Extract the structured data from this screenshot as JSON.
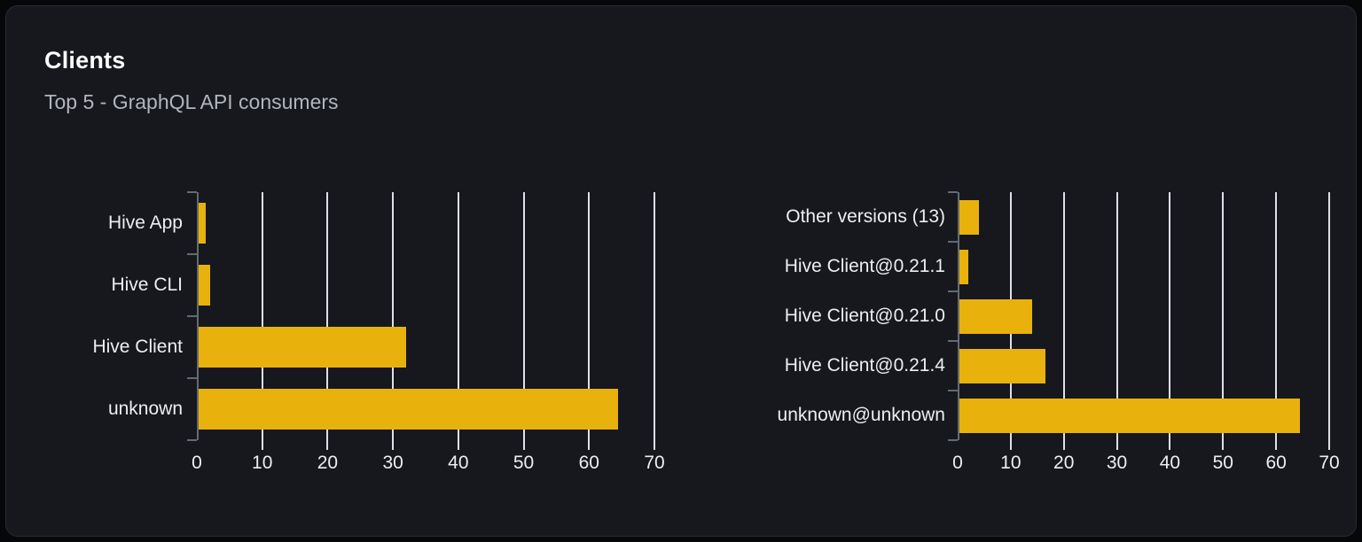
{
  "header": {
    "title": "Clients",
    "subtitle": "Top 5 - GraphQL API consumers"
  },
  "colors": {
    "page_bg": "#060708",
    "card_bg": "#16181d",
    "card_border": "#282b31",
    "title": "#fcfcfd",
    "subtitle": "#b2b6bc",
    "label": "#eceef0",
    "gridline": "#dde1e7",
    "axis": "#646a72",
    "bar": "#e9b10c"
  },
  "chart_data": [
    {
      "type": "bar",
      "orientation": "horizontal",
      "name": "clients-by-name",
      "categories": [
        "Hive App",
        "Hive CLI",
        "Hive Client",
        "unknown"
      ],
      "values": [
        1.4,
        2,
        32,
        64.5
      ],
      "xlim": [
        0,
        70
      ],
      "xticks": [
        0,
        10,
        20,
        30,
        40,
        50,
        60,
        70
      ],
      "grid": true,
      "legend": false
    },
    {
      "type": "bar",
      "orientation": "horizontal",
      "name": "clients-by-version",
      "categories": [
        "Other versions (13)",
        "Hive Client@0.21.1",
        "Hive Client@0.21.0",
        "Hive Client@0.21.4",
        "unknown@unknown"
      ],
      "values": [
        4,
        2,
        14,
        16.5,
        64.5
      ],
      "xlim": [
        0,
        70
      ],
      "xticks": [
        0,
        10,
        20,
        30,
        40,
        50,
        60,
        70
      ],
      "grid": true,
      "legend": false
    }
  ]
}
